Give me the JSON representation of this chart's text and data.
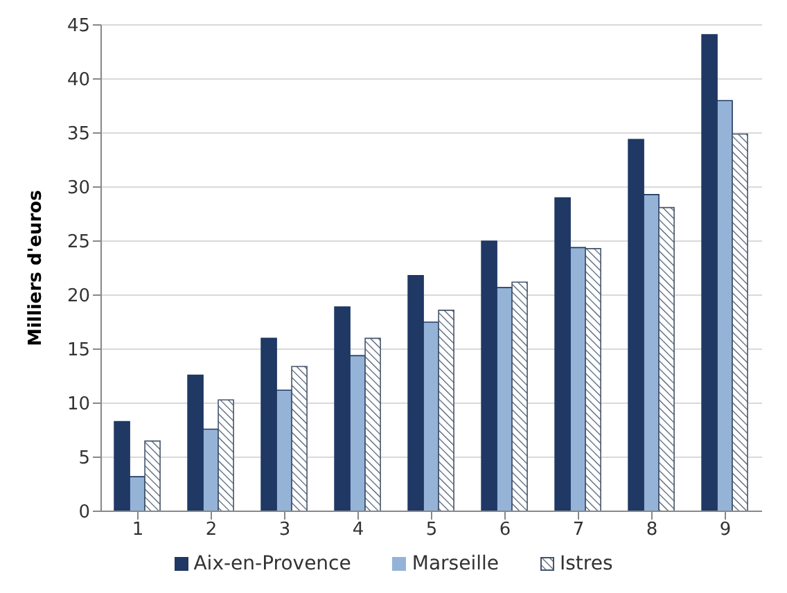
{
  "chart_data": {
    "type": "bar",
    "ylabel": "Milliers d'euros",
    "categories": [
      "1",
      "2",
      "3",
      "4",
      "5",
      "6",
      "7",
      "8",
      "9"
    ],
    "series": [
      {
        "name": "Aix-en-Provence",
        "color": "#1f3864",
        "values": [
          8.3,
          12.6,
          16,
          18.9,
          21.8,
          25,
          29,
          34.4,
          44.1
        ]
      },
      {
        "name": "Marseille",
        "color": "#95b3d7",
        "values": [
          3.2,
          7.6,
          11.2,
          14.4,
          17.5,
          20.7,
          24.4,
          29.3,
          38
        ]
      },
      {
        "name": "Istres",
        "type": "bar",
        "color": "#44546a",
        "values": [
          6.5,
          10.3,
          13.4,
          16,
          18.6,
          21.2,
          24.3,
          28.1,
          34.9
        ]
      }
    ],
    "ylim": [
      0,
      45
    ],
    "yticks": [
      0,
      5,
      10,
      15,
      20,
      25,
      30,
      35,
      40,
      45
    ],
    "grid": "y",
    "legend": "bottom"
  }
}
